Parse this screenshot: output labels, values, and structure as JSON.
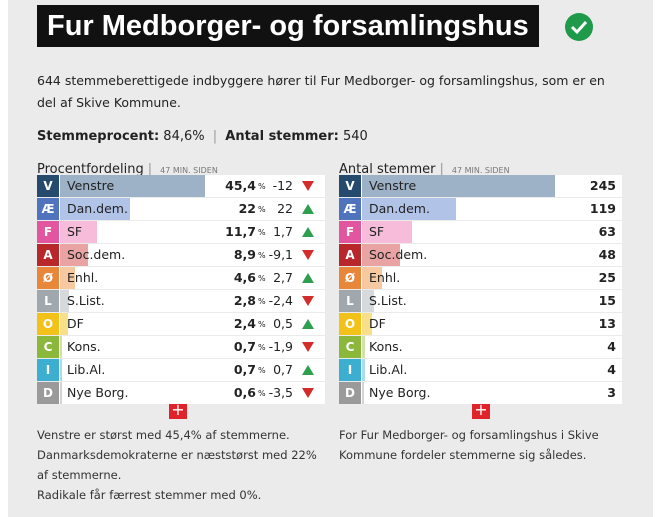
{
  "header": {
    "title": "Fur Medborger- og forsamlingshus"
  },
  "intro": "644 stemmeberettigede indbyggere hører til Fur Medborger- og forsamlingshus, som er en del af Skive Kommune.",
  "stats": [
    {
      "label": "Stemmeprocent:",
      "value": "84,6%"
    },
    {
      "label": "Antal stemmer:",
      "value": "540"
    }
  ],
  "parties": [
    {
      "letter": "V",
      "name": "Venstre",
      "color": "#254a6e",
      "bar_color": "#9db2c7"
    },
    {
      "letter": "Æ",
      "name": "Dan.dem.",
      "color": "#4f73bd",
      "bar_color": "#b2c3e8"
    },
    {
      "letter": "F",
      "name": "SF",
      "color": "#e2559f",
      "bar_color": "#f6bcd9"
    },
    {
      "letter": "A",
      "name": "Soc.dem.",
      "color": "#b8282a",
      "bar_color": "#e9a3a3"
    },
    {
      "letter": "Ø",
      "name": "Enhl.",
      "color": "#e8873a",
      "bar_color": "#f7c9a0"
    },
    {
      "letter": "L",
      "name": "S.List.",
      "color": "#a0a8ad",
      "bar_color": "#d6dadd"
    },
    {
      "letter": "O",
      "name": "DF",
      "color": "#f2c21a",
      "bar_color": "#f8e08a"
    },
    {
      "letter": "C",
      "name": "Kons.",
      "color": "#8bb73a",
      "bar_color": "#cfe3a8"
    },
    {
      "letter": "I",
      "name": "Lib.Al.",
      "color": "#3caed0",
      "bar_color": "#a9dcec"
    },
    {
      "letter": "D",
      "name": "Nye Borg.",
      "color": "#9a9a9a",
      "bar_color": "#d4d4d4"
    }
  ],
  "percent_table": {
    "title": "Procentfordeling",
    "updated": "47 MIN. SIDEN",
    "unit": "%",
    "values": [
      45.4,
      22,
      11.7,
      8.9,
      4.6,
      2.8,
      2.4,
      0.7,
      0.7,
      0.6
    ],
    "value_labels": [
      "45,4",
      "22",
      "11,7",
      "8,9",
      "4,6",
      "2,8",
      "2,4",
      "0,7",
      "0,7",
      "0,6"
    ],
    "changes": [
      "-12",
      "22",
      "1,7",
      "-9,1",
      "2,7",
      "-2,4",
      "0,5",
      "-1,9",
      "0,7",
      "-3,5"
    ]
  },
  "count_table": {
    "title": "Antal stemmer",
    "updated": "47 MIN. SIDEN",
    "values": [
      245,
      119,
      63,
      48,
      25,
      15,
      13,
      4,
      4,
      3
    ]
  },
  "footer_left": [
    "Venstre er størst med 45,4% af stemmerne.",
    "Danmarksdemokraterne er næststørst med 22% af stemmerne.",
    "Radikale får færrest stemmer med 0%."
  ],
  "footer_right": "For Fur Medborger- og forsamlingshus i Skive Kommune fordeler stemmerne sig således."
}
